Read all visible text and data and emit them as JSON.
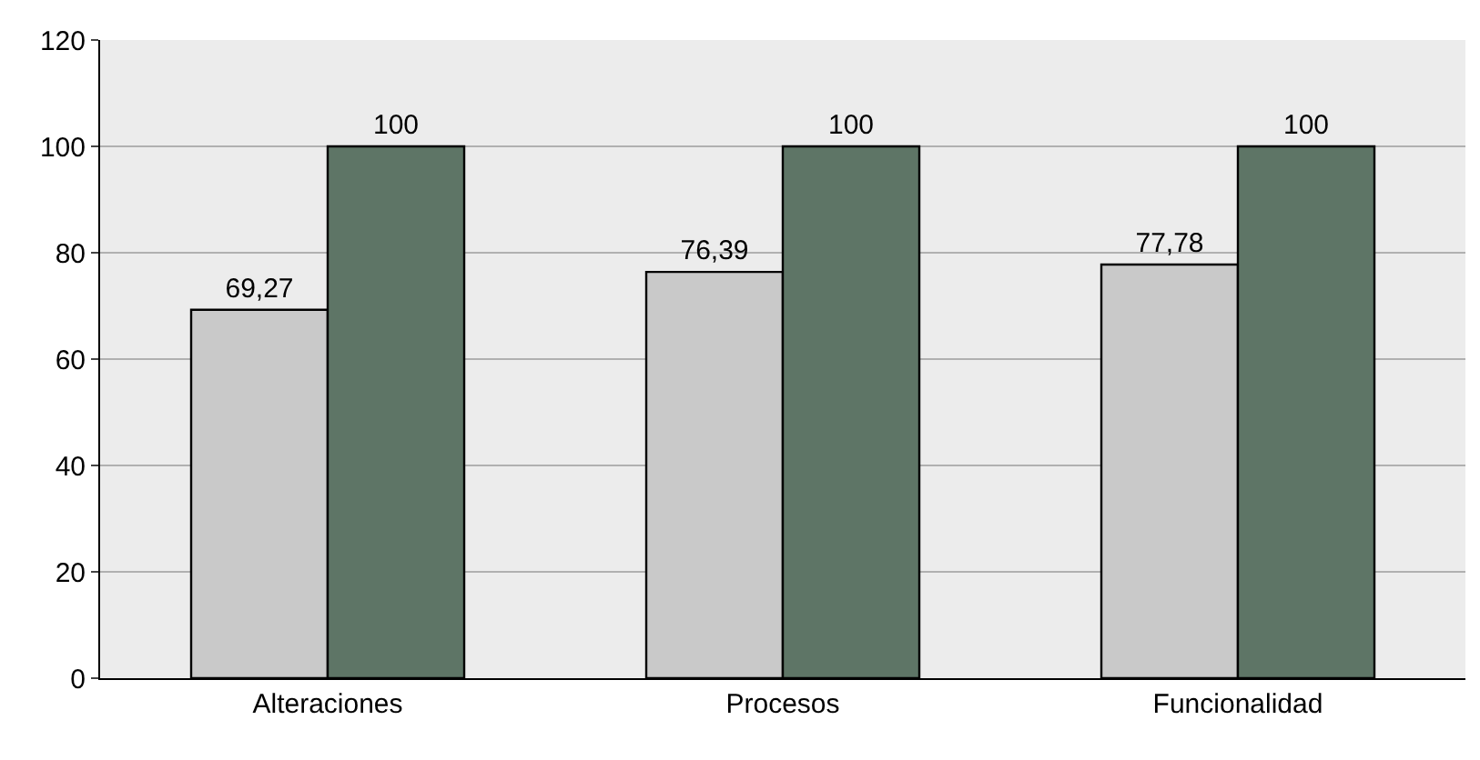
{
  "chart_data": {
    "type": "bar",
    "categories": [
      "Alteraciones",
      "Procesos",
      "Funcionalidad"
    ],
    "series": [
      {
        "color": "#c9c9c9",
        "values": [
          69.27,
          76.39,
          77.78
        ],
        "value_labels": [
          "69,27",
          "76,39",
          "77,78"
        ]
      },
      {
        "color": "#5e7566",
        "values": [
          100,
          100,
          100
        ],
        "value_labels": [
          "100",
          "100",
          "100"
        ]
      }
    ],
    "ylim": [
      0,
      120
    ],
    "yticks": [
      0,
      20,
      40,
      60,
      80,
      100,
      120
    ],
    "grid": "y"
  }
}
